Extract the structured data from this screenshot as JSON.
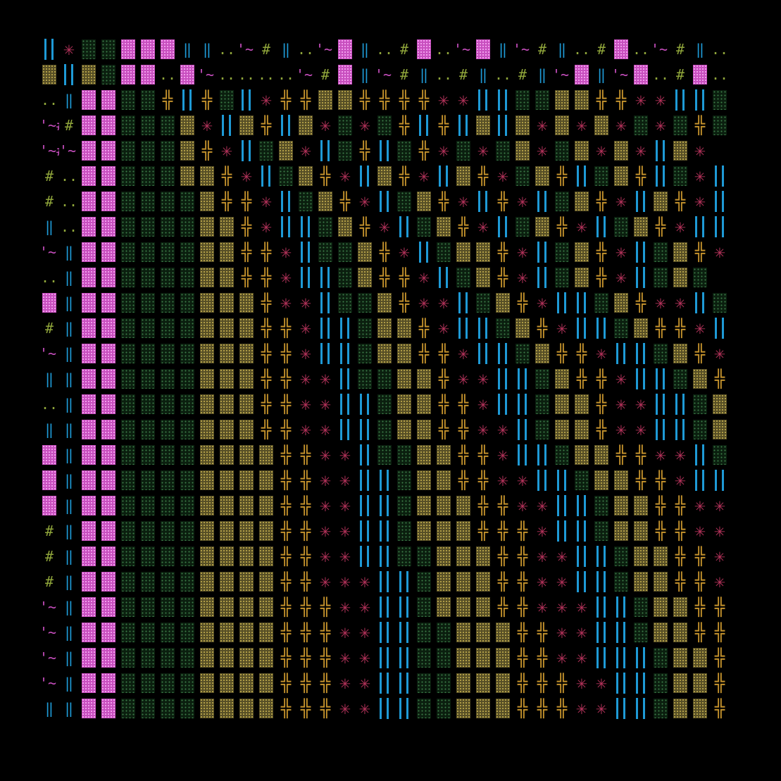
{
  "grid": {
    "cols": 35,
    "rows": 27
  },
  "palette": {
    "background": "#000000",
    "magenta": "#b3325a",
    "pink": "#c84fbf",
    "olive": "#6f6324",
    "olive_text": "#8fa53a",
    "gold": "#c3912c",
    "blue": "#1e9ad6",
    "green": "#1b3a22"
  },
  "legend": {
    "X": "magenta star glyph",
    "P": "pink dotted block",
    "O": "olive dotted block",
    "Y": "dense yellow dotted block",
    "G": "dark green dotted block",
    "T": "gold double-cross glyph",
    "B": "double blue vertical bars",
    "I": "single blue vertical bar",
    "D": "double-dot glyph",
    "H": "hash glyph",
    "W": "tilde glyph",
    "Q": "quote-tilde-quote glyph",
    "V": "double-vertical glyph",
    ".": "empty"
  },
  "glyphs": {
    "D": "..",
    "H": "#",
    "W": "'~'",
    "Q": "'~#",
    "V": "‖",
    "T": "╬",
    "X": "✳"
  },
  "rows": [
    "BXGGPPPVVDWHVDWPVDHPDWPVWHVDHPDWHVDHP",
    "OBOGPPDPWDDDDWHPVWHVDHVDHVWPVWPDHPDH",
    "DVPPGGTBTGBXTTOOTTTTXXBBGGOOTTXXBBGG",
    "QHPPGGGOXBOTBOXGXGTBTBOBOXOXOXGXGTGT",
    "QWPPGGGOTXBGOXBGTBGTXGXGOXGOXOXBOX",
    "HDPPGGGOOTXBGOTXBOTXBOTXGOTBGOTBGXB",
    "HDPPGGGGOTTXBGOTXBGOTXBTXBGOTXBOTXB",
    "VDPPGGGGOOTXBBGOTXBGOTXBGOTXBGOTXBBG",
    "WVPPGGGGOOTTXBGGOTXBGOOTXBGOTXBGOTX",
    "DVPPGGGGOOTTXBBGOTTXBGOTXBGOTXBGOG",
    "PVPPGGGGOOOTXXBGGOTXXBGOTXBBGOTXXBG",
    "HVPPGGGGOOOTTXBBGOOTXBBGOTXBBGOTTXB",
    "WVPPGGGGOOOTTXBBGOOTTXBBGOTTXBBGOTX",
    "VVPPGGGGOOOTTXXBGGOOTXXBBGOTTXBBGOT",
    "DVPPGGGGOOOTTXXBBGOOTTXBBGOOTXXBBGO",
    "VVPPGGGGOOOTTXXBBGOOTTXXBGOOTXXBBGO",
    "PVPPGGGGOOOOTTXXBGGOOTTXBBGOOTTXXBG",
    "PVPPGGGGOOOOTTXXBBGOOTTXXBBGOOTTXBB",
    "PVPPGGGGOOOOTTXXBBGOOOTTXXBBGOOTTXXB",
    "HVPPGGGGOOOOTTXXBBGOOOTTTXBBGOOTTXXB",
    "HVPPGGGGOOOOTTXXBBGGOOOTTXXBBGOOTTXB",
    "HVPPGGGGOOOOTTXXXBBGOOOTTXXBBGOOTTXX",
    "WVPPGGGGOOOOTTTXXBBGOOOTTXXXBBGOOTTX",
    "WVPPGGGGOOOOTTTXXBBGGOOOTTXXBBGOOTTX",
    "WVPPGGGGOOOOTTTXXBBGGOOOTTXXBBBGOOTT",
    "WVPPGGGGOOOOTTTXXBBGGOOOTTTXXBBGOOTT",
    "VVPPGGGGOOOOTTTXXBBGGOOOTTTXXBBGOOTT"
  ]
}
